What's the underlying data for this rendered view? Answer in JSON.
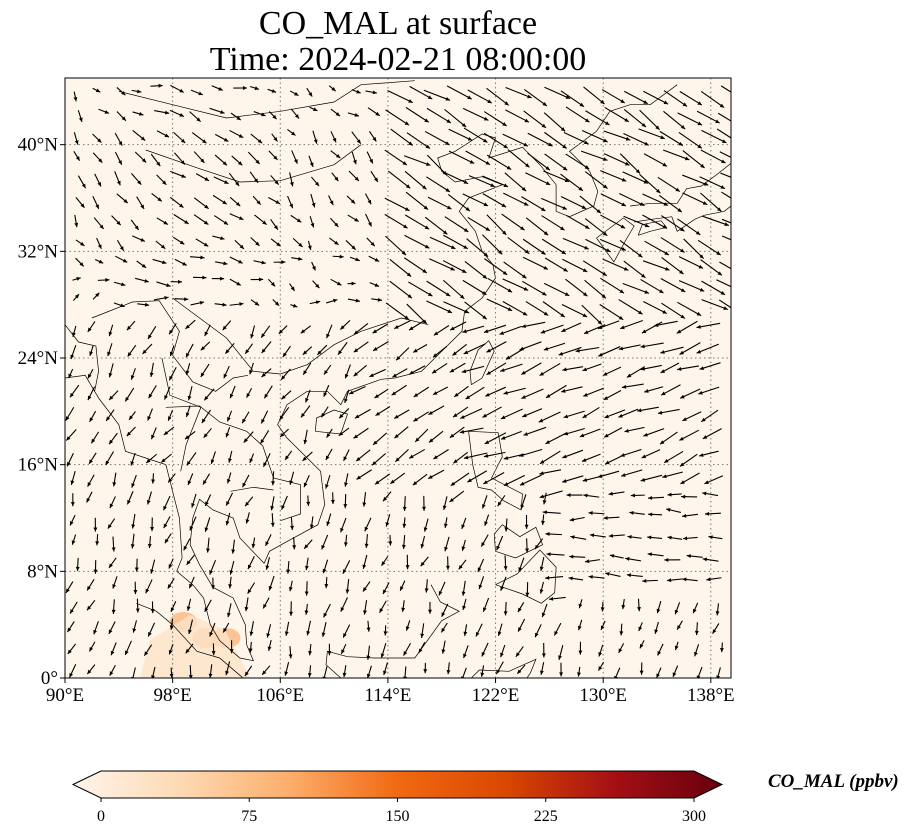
{
  "title": {
    "line1": "CO_MAL at surface",
    "line2": "Time: 2024-02-21 08:00:00"
  },
  "map": {
    "lon_range": [
      90,
      139.5
    ],
    "lat_range": [
      0,
      45
    ],
    "lon_ticks": [
      {
        "value": 90,
        "label": "90°E"
      },
      {
        "value": 98,
        "label": "98°E"
      },
      {
        "value": 106,
        "label": "106°E"
      },
      {
        "value": 114,
        "label": "114°E"
      },
      {
        "value": 122,
        "label": "122°E"
      },
      {
        "value": 130,
        "label": "130°E"
      },
      {
        "value": 138,
        "label": "138°E"
      }
    ],
    "lat_ticks": [
      {
        "value": 0,
        "label": "0°"
      },
      {
        "value": 8,
        "label": "8°N"
      },
      {
        "value": 16,
        "label": "16°N"
      },
      {
        "value": 24,
        "label": "24°N"
      },
      {
        "value": 32,
        "label": "32°N"
      },
      {
        "value": 40,
        "label": "40°N"
      }
    ],
    "gridlines": true,
    "background_color": "#fff6eb",
    "hotspot_color": "#f9b27a",
    "hotspots": [
      {
        "lon": 98.8,
        "lat": 4.2,
        "note": ""
      },
      {
        "lon": 100.5,
        "lat": 3.0,
        "note": ""
      },
      {
        "lon": 102.0,
        "lat": 3.0,
        "note": ""
      }
    ]
  },
  "colorbar": {
    "label": "CO_MAL (ppbv)",
    "min": 0,
    "max": 300,
    "ticks": [
      {
        "value": 0,
        "label": "0"
      },
      {
        "value": 75,
        "label": "75"
      },
      {
        "value": 150,
        "label": "150"
      },
      {
        "value": 225,
        "label": "225"
      },
      {
        "value": 300,
        "label": "300"
      }
    ],
    "colors": [
      "#fff5eb",
      "#fdd9b3",
      "#fdae6b",
      "#f16913",
      "#d94801",
      "#a50f15",
      "#67000d"
    ],
    "extend": "both"
  }
}
